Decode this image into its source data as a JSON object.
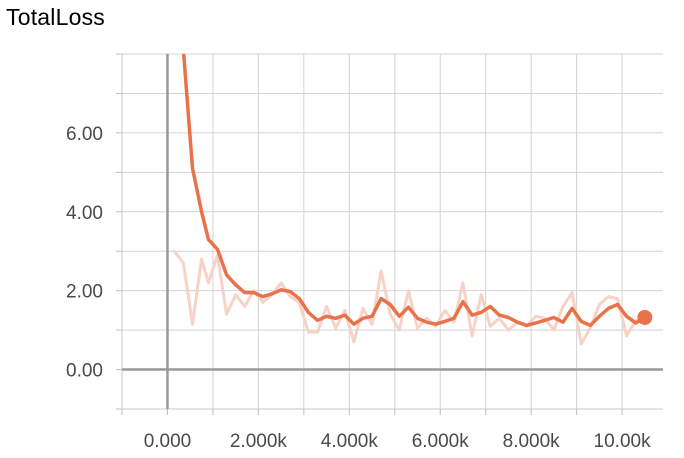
{
  "chart_data": {
    "type": "line",
    "title": "TotalLoss",
    "xlabel": "",
    "ylabel": "",
    "xlim": [
      -1000,
      10900
    ],
    "ylim": [
      -1.0,
      8.0
    ],
    "grid": true,
    "legend": "none",
    "x_ticks": [
      0,
      2000,
      4000,
      6000,
      8000,
      10000
    ],
    "x_tick_labels": [
      "0.000",
      "2.000k",
      "4.000k",
      "6.000k",
      "8.000k",
      "10.00k"
    ],
    "y_ticks": [
      0,
      2,
      4,
      6
    ],
    "y_tick_labels": [
      "0.00",
      "2.00",
      "4.00",
      "6.00"
    ],
    "colors": {
      "smoothed": "#e8734a",
      "raw": "#f7d2c6",
      "axis": "#999999",
      "grid": "#d3d3d3"
    },
    "series": [
      {
        "role": "raw",
        "x": [
          150,
          350,
          550,
          750,
          900,
          1100,
          1300,
          1500,
          1700,
          1900,
          2100,
          2300,
          2500,
          2700,
          2900,
          3100,
          3300,
          3500,
          3700,
          3900,
          4100,
          4300,
          4500,
          4700,
          4900,
          5100,
          5300,
          5500,
          5700,
          5900,
          6100,
          6300,
          6500,
          6700,
          6900,
          7100,
          7300,
          7500,
          7700,
          7900,
          8100,
          8300,
          8500,
          8700,
          8900,
          9100,
          9300,
          9500,
          9700,
          9900,
          10100,
          10300
        ],
        "y": [
          3.0,
          2.7,
          1.15,
          2.8,
          2.2,
          2.9,
          1.4,
          1.9,
          1.6,
          2.0,
          1.7,
          1.9,
          2.2,
          1.85,
          1.7,
          0.95,
          0.95,
          1.6,
          1.05,
          1.5,
          0.7,
          1.55,
          1.15,
          2.5,
          1.4,
          1.0,
          2.0,
          1.05,
          1.3,
          1.1,
          1.5,
          1.2,
          2.2,
          0.85,
          1.9,
          1.1,
          1.3,
          1.0,
          1.2,
          1.1,
          1.35,
          1.3,
          1.0,
          1.6,
          1.95,
          0.65,
          1.05,
          1.65,
          1.85,
          1.8,
          0.85,
          1.25
        ]
      },
      {
        "role": "smoothed",
        "x": [
          150,
          350,
          550,
          750,
          900,
          1100,
          1300,
          1500,
          1700,
          1900,
          2100,
          2300,
          2500,
          2700,
          2900,
          3100,
          3300,
          3500,
          3700,
          3900,
          4100,
          4300,
          4500,
          4700,
          4900,
          5100,
          5300,
          5500,
          5700,
          5900,
          6100,
          6300,
          6500,
          6700,
          6900,
          7100,
          7300,
          7500,
          7700,
          7900,
          8100,
          8300,
          8500,
          8700,
          8900,
          9100,
          9300,
          9500,
          9700,
          9900,
          10100,
          10300,
          10500
        ],
        "y": [
          8.1,
          8.1,
          5.1,
          4.0,
          3.3,
          3.05,
          2.4,
          2.15,
          1.95,
          1.95,
          1.85,
          1.92,
          2.02,
          1.98,
          1.8,
          1.45,
          1.25,
          1.35,
          1.3,
          1.38,
          1.15,
          1.3,
          1.35,
          1.8,
          1.65,
          1.35,
          1.58,
          1.3,
          1.2,
          1.15,
          1.22,
          1.3,
          1.72,
          1.38,
          1.45,
          1.6,
          1.38,
          1.32,
          1.2,
          1.12,
          1.18,
          1.25,
          1.32,
          1.2,
          1.55,
          1.22,
          1.12,
          1.35,
          1.55,
          1.65,
          1.35,
          1.18,
          1.32
        ]
      }
    ]
  }
}
